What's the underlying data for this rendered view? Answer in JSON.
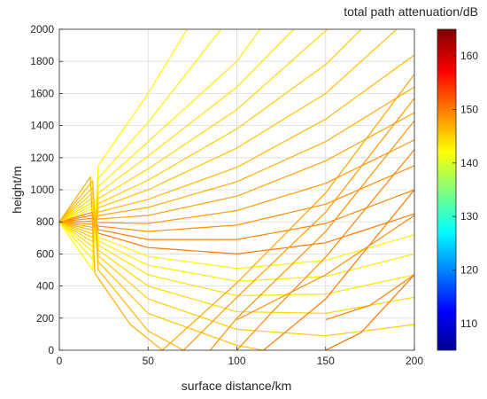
{
  "chart_data": {
    "type": "line",
    "title": "",
    "xlabel": "surface distance/km",
    "ylabel": "height/m",
    "xlim": [
      0,
      200
    ],
    "ylim": [
      0,
      2000
    ],
    "xticks": [
      0,
      50,
      100,
      150,
      200
    ],
    "yticks": [
      0,
      200,
      400,
      600,
      800,
      1000,
      1200,
      1400,
      1600,
      1800,
      2000
    ],
    "grid": true,
    "colormap": "jet",
    "colorbar": {
      "title": "total path attenuation/dB",
      "range": [
        105,
        165
      ],
      "ticks": [
        110,
        120,
        130,
        140,
        150,
        160
      ]
    },
    "source": {
      "x": 0,
      "y": 800
    },
    "series": [
      {
        "kind": "ray",
        "elevation_deg": 0.75,
        "attenuation_db": 142.6,
        "values": [
          [
            0,
            800
          ],
          [
            50,
            1600
          ],
          [
            72,
            2000
          ]
        ]
      },
      {
        "kind": "ray",
        "elevation_deg": 0.55,
        "attenuation_db": 143.1,
        "values": [
          [
            0,
            800
          ],
          [
            50,
            1420
          ],
          [
            91,
            2000
          ]
        ]
      },
      {
        "kind": "ray",
        "elevation_deg": 0.4,
        "attenuation_db": 143.7,
        "values": [
          [
            0,
            800
          ],
          [
            50,
            1300
          ],
          [
            100,
            1800
          ],
          [
            113,
            2000
          ]
        ]
      },
      {
        "kind": "ray",
        "elevation_deg": 0.3,
        "attenuation_db": 144.3,
        "values": [
          [
            0,
            800
          ],
          [
            50,
            1210
          ],
          [
            100,
            1640
          ],
          [
            132,
            2000
          ]
        ]
      },
      {
        "kind": "ray",
        "elevation_deg": 0.22,
        "attenuation_db": 144.9,
        "values": [
          [
            0,
            800
          ],
          [
            50,
            1130
          ],
          [
            100,
            1500
          ],
          [
            151,
            2000
          ]
        ]
      },
      {
        "kind": "ray",
        "elevation_deg": 0.15,
        "attenuation_db": 145.5,
        "values": [
          [
            0,
            800
          ],
          [
            50,
            1060
          ],
          [
            100,
            1380
          ],
          [
            150,
            1780
          ],
          [
            170,
            2000
          ]
        ]
      },
      {
        "kind": "ray",
        "elevation_deg": 0.09,
        "attenuation_db": 146.1,
        "values": [
          [
            0,
            800
          ],
          [
            50,
            1000
          ],
          [
            100,
            1260
          ],
          [
            150,
            1600
          ],
          [
            190,
            2000
          ]
        ]
      },
      {
        "kind": "ray",
        "elevation_deg": 0.04,
        "attenuation_db": 146.7,
        "values": [
          [
            0,
            800
          ],
          [
            50,
            940
          ],
          [
            100,
            1140
          ],
          [
            150,
            1440
          ],
          [
            200,
            1840
          ]
        ]
      },
      {
        "kind": "ray",
        "elevation_deg": 0.0,
        "attenuation_db": 147.3,
        "values": [
          [
            0,
            800
          ],
          [
            50,
            890
          ],
          [
            100,
            1050
          ],
          [
            150,
            1300
          ],
          [
            200,
            1640
          ]
        ]
      },
      {
        "kind": "ray",
        "elevation_deg": -0.04,
        "attenuation_db": 147.9,
        "values": [
          [
            0,
            800
          ],
          [
            50,
            840
          ],
          [
            100,
            960
          ],
          [
            150,
            1180
          ],
          [
            200,
            1480
          ]
        ]
      },
      {
        "kind": "ray",
        "elevation_deg": -0.08,
        "attenuation_db": 148.5,
        "values": [
          [
            0,
            800
          ],
          [
            50,
            790
          ],
          [
            100,
            870
          ],
          [
            150,
            1040
          ],
          [
            200,
            1310
          ]
        ]
      },
      {
        "kind": "ray",
        "elevation_deg": -0.12,
        "attenuation_db": 149.1,
        "values": [
          [
            0,
            800
          ],
          [
            50,
            740
          ],
          [
            100,
            780
          ],
          [
            150,
            910
          ],
          [
            200,
            1150
          ]
        ]
      },
      {
        "kind": "ray",
        "elevation_deg": -0.16,
        "attenuation_db": 149.7,
        "values": [
          [
            0,
            800
          ],
          [
            50,
            690
          ],
          [
            100,
            690
          ],
          [
            150,
            790
          ],
          [
            200,
            1000
          ]
        ]
      },
      {
        "kind": "ray",
        "elevation_deg": -0.2,
        "attenuation_db": 150.3,
        "values": [
          [
            0,
            800
          ],
          [
            50,
            640
          ],
          [
            100,
            600
          ],
          [
            150,
            670
          ],
          [
            200,
            850
          ]
        ]
      },
      {
        "kind": "ray",
        "elevation_deg": -0.25,
        "attenuation_db": 143.0,
        "values": [
          [
            0,
            800
          ],
          [
            50,
            585
          ],
          [
            100,
            510
          ],
          [
            150,
            560
          ],
          [
            200,
            720
          ]
        ]
      },
      {
        "kind": "ray",
        "elevation_deg": -0.3,
        "attenuation_db": 143.6,
        "values": [
          [
            0,
            800
          ],
          [
            50,
            530
          ],
          [
            100,
            430
          ],
          [
            150,
            460
          ],
          [
            200,
            600
          ]
        ]
      },
      {
        "kind": "ray",
        "elevation_deg": -0.36,
        "attenuation_db": 144.2,
        "values": [
          [
            0,
            800
          ],
          [
            50,
            470
          ],
          [
            100,
            340
          ],
          [
            150,
            350
          ],
          [
            200,
            470
          ]
        ]
      },
      {
        "kind": "ray",
        "elevation_deg": -0.43,
        "attenuation_db": 144.8,
        "values": [
          [
            0,
            800
          ],
          [
            50,
            400
          ],
          [
            100,
            240
          ],
          [
            150,
            230
          ],
          [
            200,
            330
          ]
        ]
      },
      {
        "kind": "ray",
        "elevation_deg": -0.52,
        "attenuation_db": 145.4,
        "values": [
          [
            0,
            800
          ],
          [
            50,
            320
          ],
          [
            100,
            130
          ],
          [
            150,
            90
          ],
          [
            200,
            160
          ]
        ]
      },
      {
        "kind": "ray",
        "elevation_deg": -0.63,
        "attenuation_db": 146.0,
        "values": [
          [
            0,
            800
          ],
          [
            50,
            230
          ],
          [
            100,
            30
          ],
          [
            115,
            0
          ]
        ]
      },
      {
        "kind": "ray",
        "elevation_deg": -0.78,
        "attenuation_db": 146.6,
        "values": [
          [
            0,
            800
          ],
          [
            50,
            120
          ],
          [
            70,
            0
          ]
        ]
      },
      {
        "kind": "ray",
        "elevation_deg": -0.95,
        "attenuation_db": 147.2,
        "values": [
          [
            0,
            800
          ],
          [
            40,
            160
          ],
          [
            58,
            0
          ]
        ]
      },
      {
        "kind": "reflected",
        "attenuation_db": 147.8,
        "values": [
          [
            58,
            0
          ],
          [
            100,
            420
          ],
          [
            150,
            980
          ],
          [
            200,
            1720
          ]
        ]
      },
      {
        "kind": "reflected",
        "attenuation_db": 148.4,
        "values": [
          [
            70,
            0
          ],
          [
            100,
            330
          ],
          [
            150,
            860
          ],
          [
            200,
            1570
          ]
        ]
      },
      {
        "kind": "reflected",
        "attenuation_db": 149.0,
        "values": [
          [
            85,
            0
          ],
          [
            100,
            200
          ],
          [
            150,
            740
          ],
          [
            200,
            1430
          ]
        ]
      },
      {
        "kind": "reflected",
        "attenuation_db": 149.6,
        "values": [
          [
            100,
            0
          ],
          [
            120,
            240
          ],
          [
            150,
            580
          ],
          [
            200,
            1250
          ]
        ]
      },
      {
        "kind": "reflected",
        "attenuation_db": 150.2,
        "values": [
          [
            115,
            0
          ],
          [
            150,
            320
          ],
          [
            200,
            1000
          ]
        ]
      },
      {
        "kind": "reflected",
        "attenuation_db": 150.8,
        "values": [
          [
            150,
            0
          ],
          [
            170,
            110
          ],
          [
            200,
            470
          ]
        ]
      },
      {
        "kind": "reflected",
        "attenuation_db": 149.4,
        "values": [
          [
            100,
            190
          ],
          [
            150,
            470
          ],
          [
            200,
            840
          ]
        ]
      },
      {
        "kind": "reflected",
        "attenuation_db": 150.0,
        "values": [
          [
            150,
            190
          ],
          [
            175,
            280
          ],
          [
            200,
            470
          ]
        ]
      }
    ]
  }
}
